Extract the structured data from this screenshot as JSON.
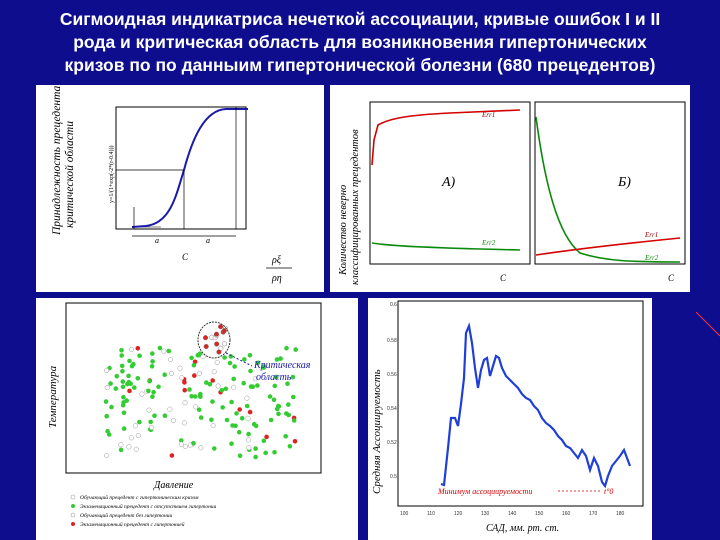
{
  "slide": {
    "title_line1": "Сигмоидная индикатриса нечеткой ассоциации, кривые ошибок I и II",
    "title_line2": "рода и критическая область для возникновения гипертонических",
    "title_line3": "кризов по по данныим гипертонической болезни (680 прецедентов)"
  },
  "panel_sigmoid": {
    "ylabel_line1": "Принадлежность прецедента",
    "ylabel_line2": "критической области",
    "formula": "y=1/(1+exp(-2*(r-0.4)))",
    "bracket_a1": "a",
    "bracket_a2": "a",
    "x_letter": "C",
    "ratio_num": "ρξ",
    "ratio_den": "ρη"
  },
  "panel_errors": {
    "ylabel_line1": "Количество неверно",
    "ylabel_line2": "классифицированных прецедентов",
    "sub_a": "А)",
    "sub_b": "Б)",
    "err1": "Err1",
    "err2": "Err2",
    "c_a": "C",
    "c_b": "C"
  },
  "panel_scatter": {
    "ylabel": "Температура",
    "xlabel": "Давление",
    "callout_line1": "Критическая",
    "callout_line2": "область",
    "legend": [
      "Обучающий прецедент с гипертоническим кризом",
      "Экзаменационный прецедент с отсутствием гипертонии",
      "Обучающий прецедент без гипертонии",
      "Экзаменационный прецедент с гипертонией"
    ]
  },
  "panel_line": {
    "ylabel": "Средняя Ассоциируемость",
    "xlabel": "САД, мм. рт. ст.",
    "min_label": "Минимум ассоциируемости",
    "t_label": "t°0",
    "xticks": [
      "100",
      "110",
      "120",
      "130",
      "140",
      "150",
      "160",
      "170",
      "180"
    ],
    "yticks": [
      "0.6",
      "0.58",
      "0.56",
      "0.54",
      "0.52",
      "0.5"
    ]
  },
  "colors": {
    "background": "#0d0d8e",
    "curve_blue": "#1a1aa8",
    "err_red": "#d40000",
    "err_green": "#0a8a0a",
    "scatter_green": "#33cc33",
    "scatter_red": "#dd2222",
    "line_blue": "#1f3fd8"
  }
}
